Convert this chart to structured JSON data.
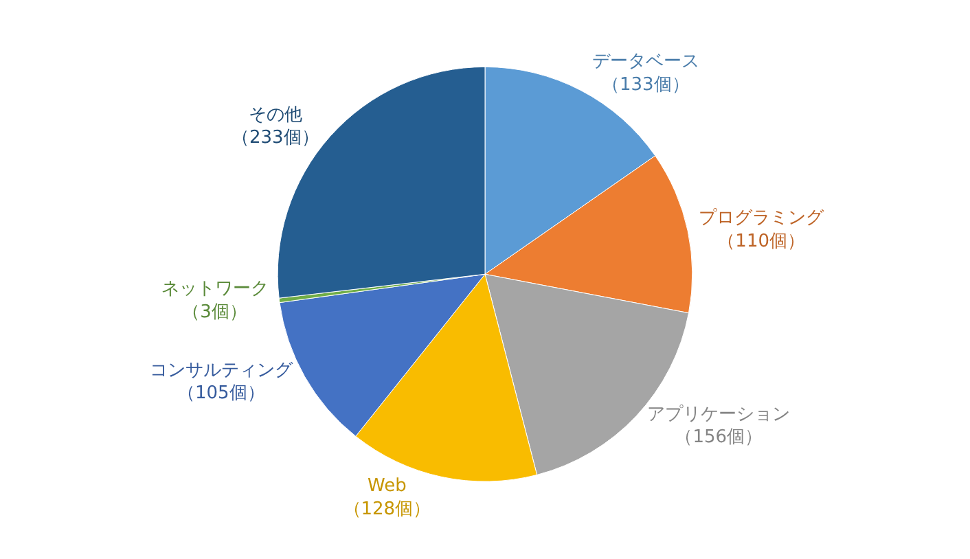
{
  "chart_data": {
    "type": "pie",
    "categories": [
      "データベース",
      "プログラミング",
      "アプリケーション",
      "Web",
      "コンサルティング",
      "ネットワーク",
      "その他"
    ],
    "values": [
      133,
      110,
      156,
      128,
      105,
      3,
      233
    ],
    "value_labels": [
      "（133個）",
      "（110個）",
      "（156個）",
      "（128個）",
      "（105個）",
      "（3個）",
      "（233個）"
    ],
    "colors": [
      "#5b9bd5",
      "#ed7d31",
      "#a5a5a5",
      "#f9bc00",
      "#4472c4",
      "#70ad47",
      "#255e91"
    ],
    "legend": false
  }
}
